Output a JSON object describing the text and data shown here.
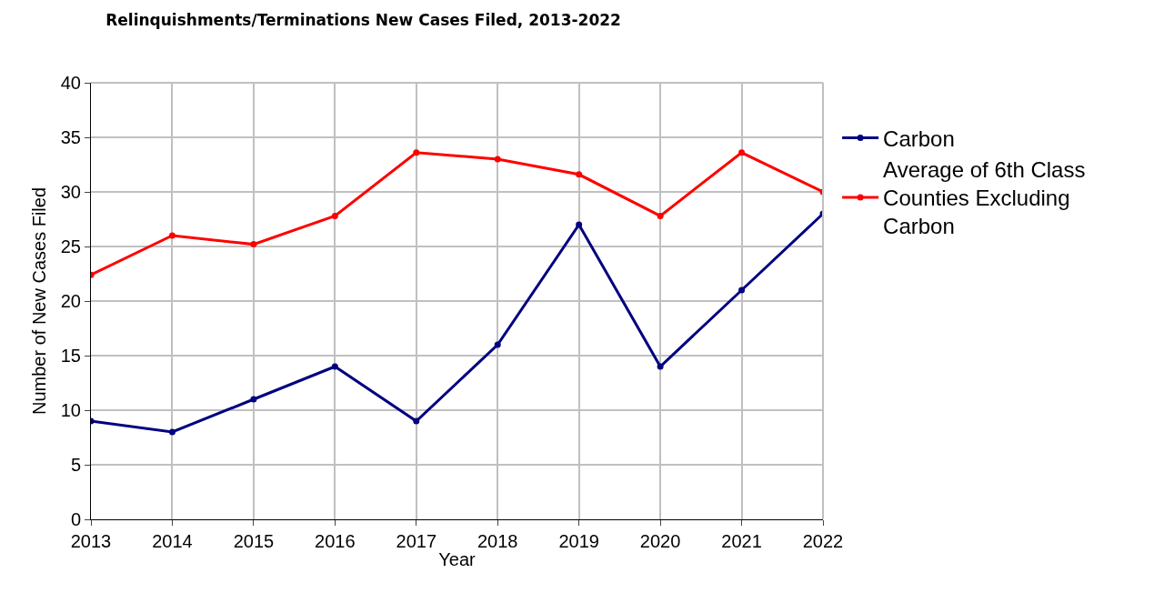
{
  "chart_data": {
    "type": "line",
    "title": "Relinquishments/Terminations New Cases Filed, 2013-2022",
    "xlabel": "Year",
    "ylabel": "Number of New Cases Filed",
    "x": [
      2013,
      2014,
      2015,
      2016,
      2017,
      2018,
      2019,
      2020,
      2021,
      2022
    ],
    "series": [
      {
        "name": "Carbon",
        "color": "#000080",
        "values": [
          9,
          8,
          11,
          14,
          9,
          16,
          27,
          14,
          21,
          28
        ]
      },
      {
        "name": "Average of 6th Class Counties Excluding Carbon",
        "color": "#ff0000",
        "values": [
          22.4,
          26,
          25.2,
          27.8,
          33.6,
          33,
          31.6,
          27.8,
          33.6,
          30
        ]
      }
    ],
    "xlim": [
      2013,
      2022
    ],
    "xticks": [
      2013,
      2014,
      2015,
      2016,
      2017,
      2018,
      2019,
      2020,
      2021,
      2022
    ],
    "ylim": [
      0,
      40
    ],
    "yticks": [
      0,
      5,
      10,
      15,
      20,
      25,
      30,
      35,
      40
    ],
    "grid": true,
    "legend": "right",
    "marker": "circle",
    "line_style": "solid"
  }
}
